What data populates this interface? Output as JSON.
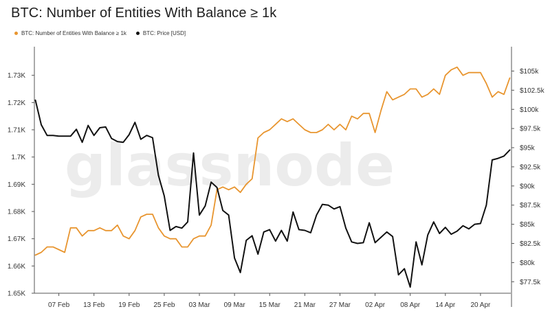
{
  "chart_data": {
    "type": "line",
    "title": "BTC: Number of Entities With Balance ≥ 1k",
    "watermark": "glassnode",
    "legend_position": "top-left",
    "grid": false,
    "x_ticks": [
      "07 Feb",
      "13 Feb",
      "19 Feb",
      "25 Feb",
      "03 Mar",
      "09 Mar",
      "15 Mar",
      "21 Mar",
      "27 Mar",
      "02 Apr",
      "08 Apr",
      "14 Apr",
      "20 Apr"
    ],
    "x_range": [
      "2025-02-03",
      "2025-04-25"
    ],
    "y_left": {
      "ticks": [
        "1.65K",
        "1.66K",
        "1.67K",
        "1.68K",
        "1.69K",
        "1.7K",
        "1.71K",
        "1.72K",
        "1.73K"
      ],
      "ylim": [
        1650,
        1740
      ]
    },
    "y_right": {
      "ticks": [
        "$77.5k",
        "$80k",
        "$82.5k",
        "$85k",
        "$87.5k",
        "$90k",
        "$92.5k",
        "$95k",
        "$97.5k",
        "$100k",
        "$102.5k",
        "$105k"
      ],
      "ylim": [
        76000,
        108000
      ]
    },
    "series": [
      {
        "name": "BTC: Number of Entities With Balance ≥ 1k",
        "color": "#e8952f",
        "axis": "left",
        "points": [
          [
            "2025-02-03",
            1664
          ],
          [
            "2025-02-04",
            1665
          ],
          [
            "2025-02-05",
            1667
          ],
          [
            "2025-02-06",
            1667
          ],
          [
            "2025-02-07",
            1666
          ],
          [
            "2025-02-08",
            1665
          ],
          [
            "2025-02-09",
            1674
          ],
          [
            "2025-02-10",
            1674
          ],
          [
            "2025-02-11",
            1671
          ],
          [
            "2025-02-12",
            1673
          ],
          [
            "2025-02-13",
            1673
          ],
          [
            "2025-02-14",
            1674
          ],
          [
            "2025-02-15",
            1673
          ],
          [
            "2025-02-16",
            1673
          ],
          [
            "2025-02-17",
            1675
          ],
          [
            "2025-02-18",
            1671
          ],
          [
            "2025-02-19",
            1670
          ],
          [
            "2025-02-20",
            1673
          ],
          [
            "2025-02-21",
            1678
          ],
          [
            "2025-02-22",
            1679
          ],
          [
            "2025-02-23",
            1679
          ],
          [
            "2025-02-24",
            1674
          ],
          [
            "2025-02-25",
            1671
          ],
          [
            "2025-02-26",
            1670
          ],
          [
            "2025-02-27",
            1670
          ],
          [
            "2025-02-28",
            1667
          ],
          [
            "2025-03-01",
            1667
          ],
          [
            "2025-03-02",
            1670
          ],
          [
            "2025-03-03",
            1671
          ],
          [
            "2025-03-04",
            1671
          ],
          [
            "2025-03-05",
            1675
          ],
          [
            "2025-03-06",
            1688
          ],
          [
            "2025-03-07",
            1689
          ],
          [
            "2025-03-08",
            1688
          ],
          [
            "2025-03-09",
            1689
          ],
          [
            "2025-03-10",
            1687
          ],
          [
            "2025-03-11",
            1690
          ],
          [
            "2025-03-12",
            1692
          ],
          [
            "2025-03-13",
            1707
          ],
          [
            "2025-03-14",
            1709
          ],
          [
            "2025-03-15",
            1710
          ],
          [
            "2025-03-16",
            1712
          ],
          [
            "2025-03-17",
            1714
          ],
          [
            "2025-03-18",
            1713
          ],
          [
            "2025-03-19",
            1714
          ],
          [
            "2025-03-20",
            1712
          ],
          [
            "2025-03-21",
            1710
          ],
          [
            "2025-03-22",
            1709
          ],
          [
            "2025-03-23",
            1709
          ],
          [
            "2025-03-24",
            1710
          ],
          [
            "2025-03-25",
            1712
          ],
          [
            "2025-03-26",
            1710
          ],
          [
            "2025-03-27",
            1712
          ],
          [
            "2025-03-28",
            1710
          ],
          [
            "2025-03-29",
            1715
          ],
          [
            "2025-03-30",
            1714
          ],
          [
            "2025-03-31",
            1716
          ],
          [
            "2025-04-01",
            1716
          ],
          [
            "2025-04-02",
            1709
          ],
          [
            "2025-04-03",
            1717
          ],
          [
            "2025-04-04",
            1724
          ],
          [
            "2025-04-05",
            1721
          ],
          [
            "2025-04-06",
            1722
          ],
          [
            "2025-04-07",
            1723
          ],
          [
            "2025-04-08",
            1725
          ],
          [
            "2025-04-09",
            1725
          ],
          [
            "2025-04-10",
            1722
          ],
          [
            "2025-04-11",
            1723
          ],
          [
            "2025-04-12",
            1725
          ],
          [
            "2025-04-13",
            1723
          ],
          [
            "2025-04-14",
            1730
          ],
          [
            "2025-04-15",
            1732
          ],
          [
            "2025-04-16",
            1733
          ],
          [
            "2025-04-17",
            1730
          ],
          [
            "2025-04-18",
            1731
          ],
          [
            "2025-04-19",
            1731
          ],
          [
            "2025-04-20",
            1731
          ],
          [
            "2025-04-21",
            1727
          ],
          [
            "2025-04-22",
            1722
          ],
          [
            "2025-04-23",
            1724
          ],
          [
            "2025-04-24",
            1723
          ],
          [
            "2025-04-25",
            1729
          ]
        ]
      },
      {
        "name": "BTC: Price [USD]",
        "color": "#111111",
        "axis": "right",
        "points": [
          [
            "2025-02-03",
            101200
          ],
          [
            "2025-02-04",
            98000
          ],
          [
            "2025-02-05",
            96600
          ],
          [
            "2025-02-06",
            96600
          ],
          [
            "2025-02-07",
            96500
          ],
          [
            "2025-02-08",
            96500
          ],
          [
            "2025-02-09",
            96500
          ],
          [
            "2025-02-10",
            97400
          ],
          [
            "2025-02-11",
            95700
          ],
          [
            "2025-02-12",
            97900
          ],
          [
            "2025-02-13",
            96600
          ],
          [
            "2025-02-14",
            97600
          ],
          [
            "2025-02-15",
            97700
          ],
          [
            "2025-02-16",
            96200
          ],
          [
            "2025-02-17",
            95800
          ],
          [
            "2025-02-18",
            95700
          ],
          [
            "2025-02-19",
            96700
          ],
          [
            "2025-02-20",
            98300
          ],
          [
            "2025-02-21",
            96100
          ],
          [
            "2025-02-22",
            96600
          ],
          [
            "2025-02-23",
            96300
          ],
          [
            "2025-02-24",
            91400
          ],
          [
            "2025-02-25",
            88700
          ],
          [
            "2025-02-26",
            84200
          ],
          [
            "2025-02-27",
            84700
          ],
          [
            "2025-02-28",
            84500
          ],
          [
            "2025-03-01",
            85300
          ],
          [
            "2025-03-02",
            94300
          ],
          [
            "2025-03-03",
            86200
          ],
          [
            "2025-03-04",
            87400
          ],
          [
            "2025-03-05",
            90500
          ],
          [
            "2025-03-06",
            89800
          ],
          [
            "2025-03-07",
            86800
          ],
          [
            "2025-03-08",
            86200
          ],
          [
            "2025-03-09",
            80600
          ],
          [
            "2025-03-10",
            78700
          ],
          [
            "2025-03-11",
            82900
          ],
          [
            "2025-03-12",
            83500
          ],
          [
            "2025-03-13",
            81100
          ],
          [
            "2025-03-14",
            84000
          ],
          [
            "2025-03-15",
            84300
          ],
          [
            "2025-03-16",
            82800
          ],
          [
            "2025-03-17",
            84200
          ],
          [
            "2025-03-18",
            82800
          ],
          [
            "2025-03-19",
            86600
          ],
          [
            "2025-03-20",
            84300
          ],
          [
            "2025-03-21",
            84200
          ],
          [
            "2025-03-22",
            83900
          ],
          [
            "2025-03-23",
            86200
          ],
          [
            "2025-03-24",
            87600
          ],
          [
            "2025-03-25",
            87500
          ],
          [
            "2025-03-26",
            87000
          ],
          [
            "2025-03-27",
            87300
          ],
          [
            "2025-03-28",
            84500
          ],
          [
            "2025-03-29",
            82700
          ],
          [
            "2025-03-30",
            82500
          ],
          [
            "2025-03-31",
            82600
          ],
          [
            "2025-04-01",
            85200
          ],
          [
            "2025-04-02",
            82600
          ],
          [
            "2025-04-03",
            83300
          ],
          [
            "2025-04-04",
            84000
          ],
          [
            "2025-04-05",
            83400
          ],
          [
            "2025-04-06",
            78400
          ],
          [
            "2025-04-07",
            79200
          ],
          [
            "2025-04-08",
            76800
          ],
          [
            "2025-04-09",
            82700
          ],
          [
            "2025-04-10",
            79700
          ],
          [
            "2025-04-11",
            83600
          ],
          [
            "2025-04-12",
            85300
          ],
          [
            "2025-04-13",
            83800
          ],
          [
            "2025-04-14",
            84600
          ],
          [
            "2025-04-15",
            83700
          ],
          [
            "2025-04-16",
            84100
          ],
          [
            "2025-04-17",
            84800
          ],
          [
            "2025-04-18",
            84400
          ],
          [
            "2025-04-19",
            85000
          ],
          [
            "2025-04-20",
            85100
          ],
          [
            "2025-04-21",
            87500
          ],
          [
            "2025-04-22",
            93400
          ],
          [
            "2025-04-23",
            93600
          ],
          [
            "2025-04-24",
            93900
          ],
          [
            "2025-04-25",
            94700
          ]
        ]
      }
    ]
  }
}
